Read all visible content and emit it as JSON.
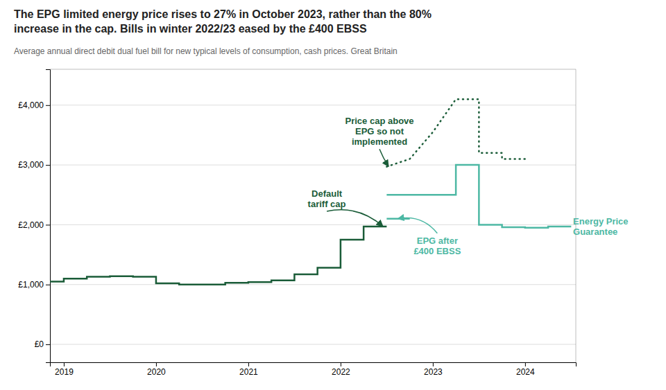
{
  "chart_data": {
    "type": "line",
    "title": "The EPG limited energy price rises to 27% in October 2023, rather than the 80%\nincrease in the cap. Bills in winter 2022/23 eased by the £400 EBSS",
    "subtitle": "Average annual direct debit dual fuel bill for new typical levels of consumption, cash prices. Great Britain",
    "xlim": [
      2018.85,
      2024.55
    ],
    "ylim": [
      -300,
      4600
    ],
    "xticks": [
      2019,
      2020,
      2021,
      2022,
      2023,
      2024
    ],
    "yticks": [
      {
        "value": 0,
        "label": "£0"
      },
      {
        "value": 1000,
        "label": "£1,000"
      },
      {
        "value": 2000,
        "label": "£2,000"
      },
      {
        "value": 3000,
        "label": "£3,000"
      },
      {
        "value": 4000,
        "label": "£4,000"
      }
    ],
    "grid": true,
    "series": [
      {
        "color": "#1a5c38",
        "line_style": "solid",
        "x": [
          2018.85,
          2019.0,
          2019.0,
          2019.25,
          2019.25,
          2019.5,
          2019.5,
          2019.75,
          2019.75,
          2020.0,
          2020.0,
          2020.25,
          2020.25,
          2020.5,
          2020.5,
          2020.75,
          2020.75,
          2021.0,
          2021.0,
          2021.25,
          2021.25,
          2021.5,
          2021.5,
          2021.75,
          2021.75,
          2022.0,
          2022.0,
          2022.25,
          2022.25,
          2022.5,
          2022.5
        ],
        "values": [
          1050,
          1050,
          1100,
          1100,
          1130,
          1130,
          1140,
          1140,
          1130,
          1130,
          1020,
          1020,
          1000,
          1000,
          1000,
          1000,
          1030,
          1030,
          1040,
          1040,
          1070,
          1070,
          1170,
          1170,
          1280,
          1280,
          1750,
          1750,
          1971,
          1971,
          1971
        ]
      },
      {
        "color": "#4db8a4",
        "line_style": "solid",
        "x": [
          2022.5,
          2022.75,
          2022.75,
          2023.0,
          2023.0,
          2023.25,
          2023.25,
          2023.5,
          2023.5,
          2023.75,
          2023.75,
          2024.0,
          2024.0,
          2024.25,
          2024.25,
          2024.5
        ],
        "values": [
          2500,
          2500,
          2500,
          2500,
          2500,
          2500,
          3000,
          3000,
          2000,
          2000,
          1960,
          1960,
          1950,
          1950,
          1970,
          1970
        ]
      },
      {
        "color": "#1a5c38",
        "line_style": "dotted",
        "x": [
          2022.5,
          2022.5,
          2022.75,
          2022.75,
          2023.0,
          2023.0,
          2023.25,
          2023.25,
          2023.5,
          2023.5,
          2023.75,
          2023.75,
          2024.0
        ],
        "values": [
          2971,
          2971,
          3100,
          3100,
          3549,
          3549,
          4100,
          4100,
          4100,
          3200,
          3200,
          3100,
          3100
        ]
      },
      {
        "color": "#4db8a4",
        "line_style": "solid",
        "x": [
          2022.5,
          2022.75
        ],
        "values": [
          2100,
          2100
        ]
      }
    ],
    "annotations": [
      {
        "text": "Default\ntariff cap",
        "color": "#1a5c38",
        "x": 2022.46,
        "y": 1971
      },
      {
        "text": "Price cap above\nEPG so not\nimplemented",
        "color": "#1a5c38",
        "x": 2022.52,
        "y": 2975
      },
      {
        "text": "EPG after\n£400 EBSS",
        "color": "#4db8a4",
        "x": 2022.62,
        "y": 2100
      },
      {
        "text": "Energy Price\nGuarantee",
        "color": "#4db8a4",
        "x": 2024.4,
        "y": 1975
      }
    ]
  }
}
